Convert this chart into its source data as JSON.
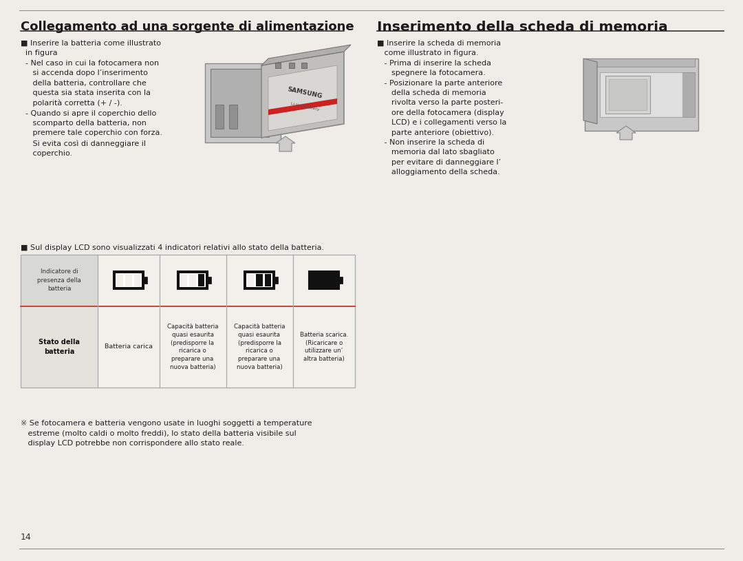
{
  "bg_color": "#f0ede8",
  "title_left": "Collegamento ad una sorgente di alimentazione",
  "title_right": "Inserimento della scheda di memoria",
  "title_fontsize": 13.0,
  "title_color": "#1a1a1a",
  "body_fontsize": 8.0,
  "body_color": "#222222",
  "page_number": "14",
  "table_note": "■ Sul display LCD sono visualizzati 4 indicatori relativi allo stato della batteria.",
  "footer_note_sym": "※",
  "footer_note": " Se fotocamera e batteria vengono usate in luoghi soggetti a temperature\n   estreme (molto caldi o molto freddi), lo stato della batteria visibile sul\n   display LCD potrebbe non corrispondere allo stato reale.",
  "table_col0_header": "Indicatore di\npresenza della\nbatteria",
  "table_col0_body": "Stato della\nbatteria",
  "table_col1_body": "Batteria carica",
  "table_col2_body": "Capacità batteria\nquasi esaurita\n(predisporre la\nricarica o\npreparare una\nnuova batteria)",
  "table_col3_body": "Capacità batteria\nquasi esaurita\n(predisporre la\nricarica o\npreparare una\nnuova batteria)",
  "table_col4_body": "Batteria scarica.\n(Ricaricare o\nutilizzare un’\naltra batteria)",
  "table_header_bg": "#d8d8d4",
  "table_body_bg": "#e4e2dc",
  "table_border_color": "#aaaaaa",
  "table_accent_color": "#cc3333",
  "left_bullet": "■ Inserire la batteria come illustrato\n  in figura\n  - Nel caso in cui la fotocamera non\n     si accenda dopo l’inserimento\n     della batteria, controllare che\n     questa sia stata inserita con la\n     polarità corretta (+ / -).\n  - Quando si apre il coperchio dello\n     scomparto della batteria, non\n     premere tale coperchio con forza.\n     Si evita così di danneggiare il\n     coperchio.",
  "right_bullet": "■ Inserire la scheda di memoria\n   come illustrato in figura.\n   - Prima di inserire la scheda\n      spegnere la fotocamera.\n   - Posizionare la parte anteriore\n      della scheda di memoria\n      rivolta verso la parte posteri-\n      ore della fotocamera (display\n      LCD) e i collegamenti verso la\n      parte anteriore (obiettivo).\n   - Non inserire la scheda di\n      memoria dal lato sbagliato\n      per evitare di danneggiare l’\n      alloggiamento della scheda."
}
